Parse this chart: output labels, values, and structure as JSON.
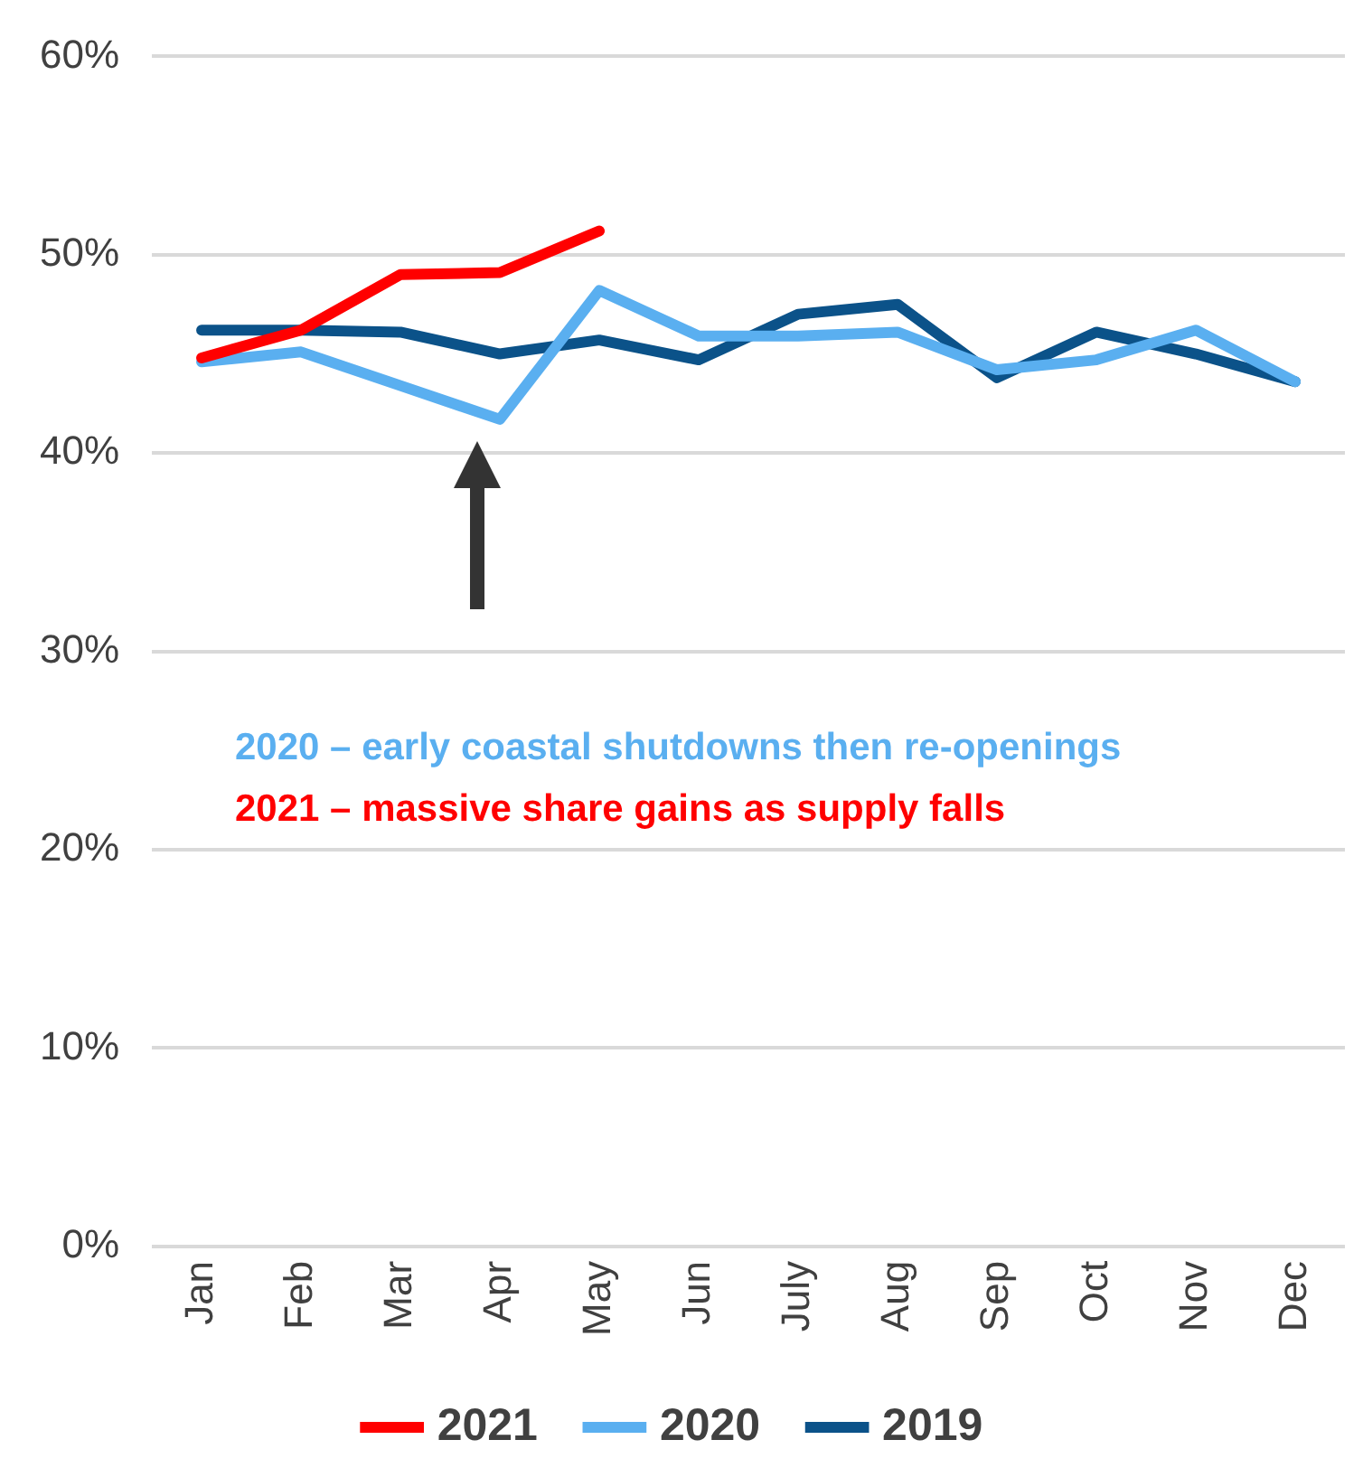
{
  "chart_data": {
    "type": "line",
    "categories": [
      "Jan",
      "Feb",
      "Mar",
      "Apr",
      "May",
      "Jun",
      "July",
      "Aug",
      "Sep",
      "Oct",
      "Nov",
      "Dec"
    ],
    "series": [
      {
        "name": "2021",
        "color": "#ff0000",
        "values": [
          44.8,
          46.2,
          49.0,
          49.1,
          51.2,
          null,
          null,
          null,
          null,
          null,
          null,
          null
        ]
      },
      {
        "name": "2020",
        "color": "#5aaff0",
        "values": [
          44.6,
          45.1,
          43.4,
          41.7,
          48.2,
          45.9,
          45.9,
          46.1,
          44.2,
          44.7,
          46.2,
          43.6
        ]
      },
      {
        "name": "2019",
        "color": "#0b5289",
        "values": [
          46.2,
          46.2,
          46.1,
          45.0,
          45.7,
          44.7,
          47.0,
          47.5,
          43.8,
          46.1,
          45.0,
          43.6
        ]
      }
    ],
    "ylim": [
      0,
      60
    ],
    "yticks": [
      {
        "value": 0,
        "label": "0%"
      },
      {
        "value": 10,
        "label": "10%"
      },
      {
        "value": 20,
        "label": "20%"
      },
      {
        "value": 30,
        "label": "30%"
      },
      {
        "value": 40,
        "label": "40%"
      },
      {
        "value": 50,
        "label": "50%"
      },
      {
        "value": 60,
        "label": "60%"
      }
    ],
    "grid": "y",
    "legend": "bottom",
    "marker": "none",
    "line_style": "solid",
    "annotations": [
      "2020 – early coastal shutdowns then re-openings",
      "2021 – massive share gains as supply falls"
    ]
  }
}
